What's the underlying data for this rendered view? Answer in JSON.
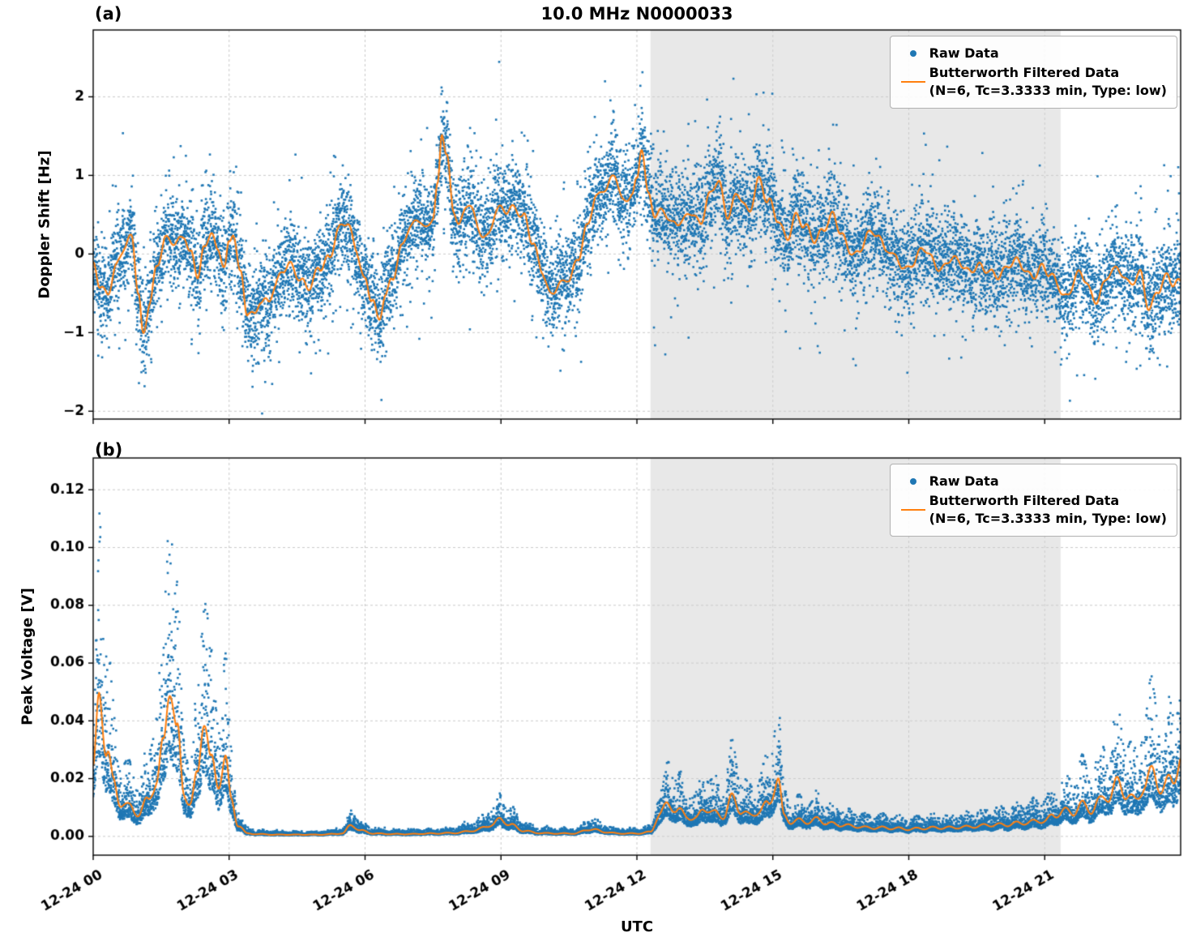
{
  "title": "10.0 MHz N0000033",
  "panel_a_tag": "(a)",
  "panel_b_tag": "(b)",
  "xlabel": "UTC",
  "legend": {
    "raw_label": "Raw Data",
    "filtered_label": "Butterworth Filtered Data",
    "filtered_sublabel": "(N=6, Tc=3.3333 min, Type: low)"
  },
  "colors": {
    "raw": "#1f77b4",
    "filtered": "#ff7f0e",
    "shade": "rgba(205,205,205,0.45)",
    "grid": "#c9c9c9",
    "axis": "#000000"
  },
  "chart_data": [
    {
      "type": "scatter",
      "panel": "a",
      "title": "10.0 MHz N0000033",
      "ylabel": "Doppler Shift [Hz]",
      "ylim": [
        -2.1,
        2.85
      ],
      "yticks": [
        -2,
        -1,
        0,
        1,
        2
      ],
      "yticklabels": [
        "−2",
        "−1",
        "0",
        "1",
        "2"
      ],
      "xlim_hours": [
        0,
        24
      ],
      "xticks_hours": [
        0,
        3,
        6,
        9,
        12,
        15,
        18,
        21
      ],
      "xticklabels": [
        "12-24 00",
        "12-24 03",
        "12-24 06",
        "12-24 09",
        "12-24 12",
        "12-24 15",
        "12-24 18",
        "12-24 21"
      ],
      "grid": true,
      "shaded_region_hours": [
        12.3,
        21.35
      ],
      "legend_position": "upper right",
      "series": [
        {
          "name": "Raw Data",
          "type": "scatter",
          "color": "#1f77b4",
          "noise_model": "additive",
          "noise_sigma": 0.28,
          "noise_sigma_burst": 0.55,
          "burst_fraction": 0.15
        },
        {
          "name": "Butterworth Filtered Data (N=6, Tc=3.3333 min, Type: low)",
          "type": "line",
          "color": "#ff7f0e",
          "x_hours": [
            0.0,
            0.15,
            0.3,
            0.5,
            0.7,
            0.85,
            1.0,
            1.1,
            1.25,
            1.4,
            1.6,
            1.8,
            2.0,
            2.15,
            2.3,
            2.45,
            2.6,
            2.75,
            2.9,
            3.0,
            3.1,
            3.25,
            3.4,
            3.55,
            3.7,
            3.85,
            4.0,
            4.2,
            4.4,
            4.6,
            4.8,
            5.0,
            5.2,
            5.4,
            5.6,
            5.8,
            6.0,
            6.15,
            6.3,
            6.45,
            6.6,
            6.8,
            7.0,
            7.2,
            7.35,
            7.5,
            7.6,
            7.7,
            7.8,
            7.95,
            8.1,
            8.3,
            8.5,
            8.7,
            8.9,
            9.1,
            9.3,
            9.5,
            9.7,
            9.9,
            10.1,
            10.3,
            10.5,
            10.7,
            10.9,
            11.1,
            11.3,
            11.5,
            11.7,
            11.9,
            12.0,
            12.1,
            12.25,
            12.4,
            12.6,
            12.8,
            13.0,
            13.2,
            13.4,
            13.6,
            13.8,
            14.0,
            14.2,
            14.45,
            14.7,
            14.9,
            15.1,
            15.3,
            15.5,
            15.7,
            15.9,
            16.1,
            16.3,
            16.5,
            16.7,
            16.9,
            17.1,
            17.3,
            17.5,
            17.7,
            17.9,
            18.1,
            18.3,
            18.5,
            18.7,
            18.9,
            19.1,
            19.3,
            19.5,
            19.7,
            19.9,
            20.1,
            20.3,
            20.5,
            20.7,
            20.9,
            21.1,
            21.3,
            21.5,
            21.7,
            21.9,
            22.1,
            22.3,
            22.5,
            22.7,
            22.9,
            23.1,
            23.3,
            23.5,
            23.7,
            23.85,
            24.0
          ],
          "y": [
            -0.15,
            -0.45,
            -0.55,
            -0.1,
            0.1,
            0.15,
            -0.5,
            -1.0,
            -0.55,
            -0.2,
            0.15,
            0.2,
            0.25,
            -0.05,
            -0.3,
            0.1,
            0.35,
            0.0,
            -0.2,
            0.1,
            0.3,
            -0.2,
            -0.75,
            -0.85,
            -0.6,
            -0.55,
            -0.4,
            -0.25,
            -0.15,
            -0.3,
            -0.45,
            -0.2,
            0.0,
            0.3,
            0.35,
            0.1,
            -0.3,
            -0.6,
            -0.9,
            -0.5,
            -0.25,
            0.05,
            0.3,
            0.5,
            0.35,
            0.45,
            0.8,
            1.5,
            1.3,
            0.6,
            0.4,
            0.6,
            0.35,
            0.25,
            0.5,
            0.55,
            0.65,
            0.45,
            0.1,
            -0.15,
            -0.5,
            -0.45,
            -0.3,
            0.0,
            0.3,
            0.7,
            0.9,
            1.0,
            0.6,
            0.8,
            1.0,
            1.4,
            0.7,
            0.45,
            0.6,
            0.4,
            0.35,
            0.55,
            0.45,
            0.7,
            0.9,
            0.55,
            0.75,
            0.5,
            1.0,
            0.65,
            0.4,
            0.25,
            0.5,
            0.3,
            0.2,
            0.35,
            0.45,
            0.25,
            0.1,
            0.0,
            0.2,
            0.3,
            0.1,
            -0.1,
            -0.2,
            -0.05,
            0.05,
            -0.1,
            -0.15,
            -0.05,
            -0.15,
            -0.2,
            -0.1,
            -0.25,
            -0.3,
            -0.15,
            -0.1,
            -0.2,
            -0.25,
            -0.15,
            -0.3,
            -0.4,
            -0.5,
            -0.3,
            -0.35,
            -0.55,
            -0.4,
            -0.25,
            -0.2,
            -0.35,
            -0.3,
            -0.7,
            -0.4,
            -0.3,
            -0.45,
            -0.35
          ]
        }
      ]
    },
    {
      "type": "scatter",
      "panel": "b",
      "ylabel": "Peak Voltage [V]",
      "ylim": [
        -0.0065,
        0.131
      ],
      "yticks": [
        0.0,
        0.02,
        0.04,
        0.06,
        0.08,
        0.1,
        0.12
      ],
      "yticklabels": [
        "0.00",
        "0.02",
        "0.04",
        "0.06",
        "0.08",
        "0.10",
        "0.12"
      ],
      "xlim_hours": [
        0,
        24
      ],
      "xticks_hours": [
        0,
        3,
        6,
        9,
        12,
        15,
        18,
        21
      ],
      "xticklabels": [
        "12-24 00",
        "12-24 03",
        "12-24 06",
        "12-24 09",
        "12-24 12",
        "12-24 15",
        "12-24 18",
        "12-24 21"
      ],
      "xlabel": "UTC",
      "grid": true,
      "shaded_region_hours": [
        12.3,
        21.35
      ],
      "legend_position": "upper right",
      "series": [
        {
          "name": "Raw Data",
          "type": "scatter",
          "color": "#1f77b4",
          "noise_model": "multiplicative",
          "mult_base": 0.55,
          "mult_scale": 0.5,
          "mult_cap": 2.25
        },
        {
          "name": "Butterworth Filtered Data (N=6, Tc=3.3333 min, Type: low)",
          "type": "line",
          "color": "#ff7f0e",
          "x_hours": [
            0.0,
            0.15,
            0.3,
            0.45,
            0.6,
            0.8,
            1.0,
            1.2,
            1.4,
            1.55,
            1.7,
            1.85,
            2.0,
            2.15,
            2.3,
            2.45,
            2.6,
            2.75,
            2.9,
            3.05,
            3.2,
            3.4,
            3.6,
            4.0,
            4.5,
            5.0,
            5.5,
            5.7,
            5.9,
            6.2,
            6.6,
            7.0,
            7.5,
            8.0,
            8.4,
            8.8,
            9.0,
            9.2,
            9.5,
            9.8,
            10.2,
            10.6,
            11.0,
            11.3,
            11.6,
            12.0,
            12.3,
            12.5,
            12.7,
            12.9,
            13.1,
            13.3,
            13.5,
            13.7,
            13.9,
            14.1,
            14.3,
            14.5,
            14.7,
            14.9,
            15.1,
            15.25,
            15.4,
            15.6,
            15.8,
            16.0,
            16.2,
            16.5,
            16.8,
            17.1,
            17.4,
            17.7,
            18.0,
            18.3,
            18.6,
            18.9,
            19.2,
            19.5,
            19.8,
            20.1,
            20.4,
            20.7,
            21.0,
            21.2,
            21.4,
            21.6,
            21.8,
            22.0,
            22.2,
            22.4,
            22.6,
            22.8,
            23.0,
            23.2,
            23.4,
            23.6,
            23.8,
            24.0
          ],
          "y": [
            0.022,
            0.05,
            0.03,
            0.018,
            0.012,
            0.01,
            0.008,
            0.012,
            0.02,
            0.03,
            0.057,
            0.035,
            0.015,
            0.012,
            0.02,
            0.045,
            0.025,
            0.018,
            0.028,
            0.012,
            0.004,
            0.001,
            0.0008,
            0.0006,
            0.0006,
            0.0006,
            0.001,
            0.004,
            0.002,
            0.001,
            0.0008,
            0.0008,
            0.001,
            0.0012,
            0.002,
            0.004,
            0.006,
            0.004,
            0.002,
            0.0012,
            0.001,
            0.001,
            0.0025,
            0.0015,
            0.001,
            0.001,
            0.0015,
            0.008,
            0.011,
            0.009,
            0.007,
            0.006,
            0.01,
            0.008,
            0.007,
            0.013,
            0.009,
            0.007,
            0.009,
            0.011,
            0.02,
            0.007,
            0.005,
            0.0055,
            0.005,
            0.006,
            0.0045,
            0.004,
            0.0035,
            0.003,
            0.003,
            0.0028,
            0.0025,
            0.0028,
            0.003,
            0.003,
            0.0032,
            0.0035,
            0.004,
            0.004,
            0.0045,
            0.005,
            0.0055,
            0.007,
            0.009,
            0.008,
            0.011,
            0.009,
            0.012,
            0.014,
            0.018,
            0.015,
            0.012,
            0.018,
            0.022,
            0.016,
            0.02,
            0.026
          ]
        }
      ]
    }
  ]
}
